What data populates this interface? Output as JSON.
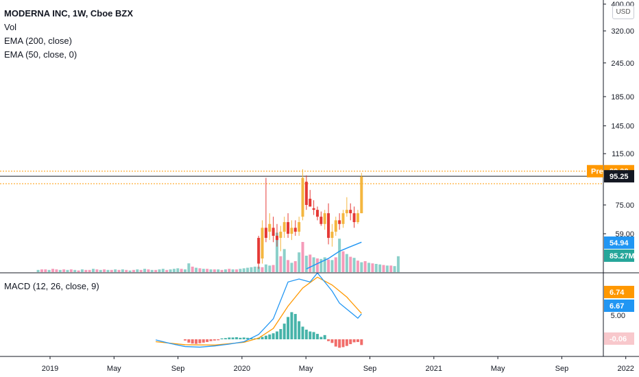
{
  "legend": {
    "title": "MODERNA INC, 1W, Cboe BZX",
    "vol": "Vol",
    "ema200": "EMA (200, close)",
    "ema50": "EMA (50, close, 0)"
  },
  "currency": "USD",
  "macd_label": "MACD (12, 26, close, 9)",
  "colors": {
    "up": "#f4b63f",
    "down": "#e53935",
    "vol_up": "#80cbc4",
    "vol_down": "#f48fb1",
    "ema": "#2196f3",
    "macd": "#2196f3",
    "signal": "#ff9800",
    "hist_up": "#26a69a",
    "hist_down": "#ef5350",
    "pre": "#ff9800",
    "last": "#131722",
    "vol_badge": "#26a69a",
    "hist_badge": "#f8c8cc"
  },
  "badges": {
    "pre_label": "Pre",
    "pre_value": "99.38",
    "last_value": "95.25",
    "ema_value": "54.94",
    "vol_value": "85.27M",
    "macd_value": "6.74",
    "signal_value": "6.67",
    "hist_value": "-0.06"
  },
  "chart_data": {
    "type": "candlestick",
    "x_ticks": [
      "2019",
      "May",
      "Sep",
      "2020",
      "May",
      "Sep",
      "2021",
      "May",
      "Sep",
      "2022"
    ],
    "price_ticks": [
      "400.00",
      "320.00",
      "245.00",
      "185.00",
      "145.00",
      "115.00",
      "75.00",
      "59.00"
    ],
    "price_scale": "log",
    "price_axis_range": [
      42,
      410
    ],
    "macd_ticks": [
      "5.00"
    ],
    "weeks_per_tick": 17.4,
    "first_week_index": 0,
    "candles_start_week": 10,
    "candles_2020": [
      {
        "w": 70,
        "o": 57,
        "h": 58,
        "l": 44,
        "c": 46
      },
      {
        "w": 71,
        "o": 48,
        "h": 66,
        "l": 46,
        "c": 62
      },
      {
        "w": 72,
        "o": 62,
        "h": 94,
        "l": 55,
        "c": 57
      },
      {
        "w": 73,
        "o": 60,
        "h": 70,
        "l": 56,
        "c": 64
      },
      {
        "w": 74,
        "o": 62,
        "h": 68,
        "l": 55,
        "c": 58
      },
      {
        "w": 75,
        "o": 58,
        "h": 64,
        "l": 53,
        "c": 56
      },
      {
        "w": 76,
        "o": 57,
        "h": 63,
        "l": 51,
        "c": 60
      },
      {
        "w": 77,
        "o": 60,
        "h": 68,
        "l": 57,
        "c": 65
      },
      {
        "w": 78,
        "o": 65,
        "h": 70,
        "l": 57,
        "c": 59
      },
      {
        "w": 79,
        "o": 59,
        "h": 66,
        "l": 56,
        "c": 62
      },
      {
        "w": 80,
        "o": 62,
        "h": 66,
        "l": 58,
        "c": 60
      },
      {
        "w": 81,
        "o": 60,
        "h": 68,
        "l": 58,
        "c": 65
      },
      {
        "w": 82,
        "o": 68,
        "h": 101,
        "l": 66,
        "c": 94
      },
      {
        "w": 83,
        "o": 91,
        "h": 96,
        "l": 72,
        "c": 75
      },
      {
        "w": 84,
        "o": 79,
        "h": 85,
        "l": 74,
        "c": 74
      },
      {
        "w": 85,
        "o": 73,
        "h": 78,
        "l": 69,
        "c": 72
      },
      {
        "w": 86,
        "o": 72,
        "h": 74,
        "l": 66,
        "c": 68
      },
      {
        "w": 87,
        "o": 68,
        "h": 71,
        "l": 63,
        "c": 64
      },
      {
        "w": 88,
        "o": 64,
        "h": 72,
        "l": 61,
        "c": 70
      },
      {
        "w": 89,
        "o": 70,
        "h": 76,
        "l": 54,
        "c": 57
      },
      {
        "w": 90,
        "o": 57,
        "h": 64,
        "l": 53,
        "c": 60
      },
      {
        "w": 91,
        "o": 60,
        "h": 68,
        "l": 58,
        "c": 66
      },
      {
        "w": 92,
        "o": 66,
        "h": 70,
        "l": 61,
        "c": 64
      },
      {
        "w": 93,
        "o": 64,
        "h": 72,
        "l": 62,
        "c": 70
      },
      {
        "w": 94,
        "o": 70,
        "h": 80,
        "l": 68,
        "c": 72
      },
      {
        "w": 95,
        "o": 72,
        "h": 76,
        "l": 66,
        "c": 70
      },
      {
        "w": 96,
        "o": 70,
        "h": 74,
        "l": 62,
        "c": 65
      },
      {
        "w": 97,
        "o": 65,
        "h": 72,
        "l": 64,
        "c": 70
      },
      {
        "w": 98,
        "o": 70,
        "h": 98,
        "l": 70,
        "c": 95
      }
    ],
    "early_price_level": 44,
    "ema_line": [
      [
        83,
        44
      ],
      [
        86,
        46
      ],
      [
        89,
        48
      ],
      [
        92,
        51
      ],
      [
        95,
        53
      ],
      [
        98,
        55
      ]
    ],
    "volume_max": 1,
    "volume": [
      0.04,
      0.05,
      0.05,
      0.04,
      0.06,
      0.05,
      0.04,
      0.05,
      0.04,
      0.05,
      0.04,
      0.03,
      0.05,
      0.04,
      0.04,
      0.06,
      0.05,
      0.04,
      0.05,
      0.04,
      0.04,
      0.05,
      0.04,
      0.05,
      0.04,
      0.03,
      0.04,
      0.05,
      0.04,
      0.06,
      0.05,
      0.04,
      0.04,
      0.05,
      0.06,
      0.04,
      0.05,
      0.06,
      0.07,
      0.06,
      0.05,
      0.16,
      0.1,
      0.08,
      0.07,
      0.06,
      0.06,
      0.05,
      0.05,
      0.05,
      0.04,
      0.05,
      0.06,
      0.05,
      0.05,
      0.06,
      0.07,
      0.08,
      0.09,
      0.1,
      0.1,
      0.09,
      0.14,
      0.12,
      0.13,
      0.72,
      0.29,
      0.42,
      0.22,
      0.17,
      0.2,
      0.36,
      0.55,
      0.3,
      0.32,
      0.27,
      0.25,
      0.24,
      0.27,
      0.23,
      0.22,
      0.27,
      0.61,
      0.38,
      0.33,
      0.28,
      0.26,
      0.21,
      0.18,
      0.2,
      0.17,
      0.16,
      0.15,
      0.14,
      0.13,
      0.12,
      0.12,
      0.11,
      0.29
    ],
    "volume_up": [
      true,
      false,
      false,
      true,
      false,
      false,
      true,
      false,
      true,
      false,
      true,
      false,
      true,
      false,
      false,
      true,
      false,
      true,
      false,
      true,
      false,
      true,
      false,
      true,
      false,
      true,
      false,
      true,
      false,
      true,
      false,
      true,
      false,
      true,
      true,
      false,
      true,
      true,
      true,
      false,
      true,
      true,
      false,
      true,
      false,
      true,
      false,
      true,
      false,
      true,
      false,
      true,
      false,
      true,
      false,
      true,
      true,
      true,
      true,
      true,
      true,
      false,
      true,
      true,
      false,
      true,
      false,
      true,
      false,
      true,
      false,
      true,
      false,
      true,
      false,
      true,
      false,
      true,
      true,
      false,
      true,
      false,
      true,
      false,
      true,
      false,
      true,
      false,
      true,
      false,
      true,
      false,
      true,
      true,
      false,
      true,
      false,
      true,
      true
    ],
    "macd_line": [
      [
        42,
        -0.2
      ],
      [
        46,
        -1.4
      ],
      [
        50,
        -2.4
      ],
      [
        54,
        -2.6
      ],
      [
        58,
        -2.2
      ],
      [
        62,
        -1.6
      ],
      [
        66,
        -0.8
      ],
      [
        70,
        1.6
      ],
      [
        74,
        6.8
      ],
      [
        78,
        19
      ],
      [
        81,
        20
      ],
      [
        84,
        19
      ],
      [
        86,
        22
      ],
      [
        88,
        19
      ],
      [
        90,
        16
      ],
      [
        92,
        12
      ],
      [
        94,
        10
      ],
      [
        96,
        8
      ],
      [
        97,
        7
      ],
      [
        98,
        8.4
      ]
    ],
    "signal_line": [
      [
        42,
        -0.8
      ],
      [
        50,
        -1.8
      ],
      [
        58,
        -1.9
      ],
      [
        66,
        -1.0
      ],
      [
        70,
        0.4
      ],
      [
        74,
        3.6
      ],
      [
        78,
        11
      ],
      [
        82,
        17
      ],
      [
        86,
        20.6
      ],
      [
        90,
        18
      ],
      [
        94,
        14
      ],
      [
        98,
        8.6
      ]
    ],
    "histogram": [
      -0.4,
      -1.1,
      -1.4,
      -1.5,
      -1.3,
      -1.1,
      -0.9,
      -0.6,
      -0.4,
      -0.3,
      0.3,
      0.4,
      0.6,
      0.6,
      0.7,
      0.5,
      0.6,
      0.5,
      0.4,
      0.3,
      0.5,
      0.8,
      1.2,
      1.6,
      2.0,
      2.6,
      3.4,
      5.2,
      7.4,
      9.0,
      8.4,
      6.0,
      4.2,
      3.2,
      2.6,
      2.4,
      1.8,
      0.8,
      1.4,
      -0.6,
      -1.2,
      -2.4,
      -2.8,
      -2.6,
      -2.2,
      -1.6,
      -1.0,
      -0.9,
      -1.9
    ],
    "histogram_start_week": 50
  }
}
